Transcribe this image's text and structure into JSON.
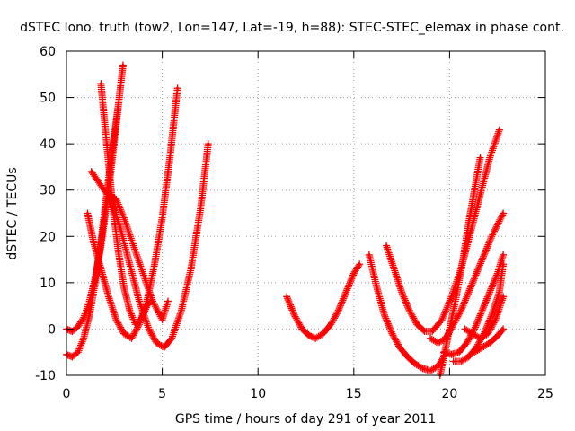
{
  "chart_data": {
    "type": "scatter",
    "title": "dSTEC Iono. truth (tow2, Lon=147, Lat=-19, h=88): STEC-STEC_elemax in phase cont.",
    "xlabel": "GPS time / hours of day 291 of year 2011",
    "ylabel": "dSTEC  / TECUs",
    "xlim": [
      0,
      25
    ],
    "ylim": [
      -10,
      60
    ],
    "xticks": [
      0,
      5,
      10,
      15,
      20,
      25
    ],
    "yticks": [
      -10,
      0,
      10,
      20,
      30,
      40,
      50,
      60
    ],
    "xtick_labels": [
      "0",
      "5",
      "10",
      "15",
      "20",
      "25"
    ],
    "ytick_labels": [
      "-10",
      "0",
      "10",
      "20",
      "30",
      "40",
      "50",
      "60"
    ],
    "grid": true,
    "legend": "none",
    "marker": "plus",
    "color": "#ff0000",
    "series": [
      {
        "x": [
          0.0,
          0.3,
          0.6,
          0.9,
          1.2,
          1.5,
          1.8,
          2.1,
          2.4,
          2.7,
          2.95
        ],
        "y": [
          0,
          -0.5,
          0.5,
          2.5,
          6,
          11,
          18,
          27,
          37,
          48,
          57
        ]
      },
      {
        "x": [
          0.0,
          0.3,
          0.6,
          0.9,
          1.2,
          1.5,
          1.8,
          2.1,
          2.4,
          2.7
        ],
        "y": [
          -5.5,
          -6,
          -5,
          -2,
          3,
          10,
          19,
          29,
          39,
          48
        ]
      },
      {
        "x": [
          1.8,
          2.1,
          2.4,
          2.7,
          3.0,
          3.3,
          3.6,
          3.9,
          4.2,
          4.4
        ],
        "y": [
          53,
          40,
          27,
          17,
          9,
          4,
          1,
          2,
          5,
          6
        ]
      },
      {
        "x": [
          1.1,
          1.4,
          1.8,
          2.2,
          2.6,
          3.0,
          3.4,
          3.8,
          4.2,
          4.6,
          5.0,
          5.4,
          5.8
        ],
        "y": [
          25,
          19,
          13,
          7,
          2,
          -1,
          -2,
          1,
          6,
          14,
          24,
          37,
          52
        ]
      },
      {
        "x": [
          1.3,
          1.8,
          2.3,
          2.8,
          3.3,
          3.8,
          4.3,
          4.7,
          5.1,
          5.5,
          6.0,
          6.5,
          7.0,
          7.4
        ],
        "y": [
          34,
          31,
          28,
          22,
          14,
          6,
          0,
          -3,
          -4,
          -2,
          4,
          13,
          26,
          40
        ]
      },
      {
        "x": [
          2.0,
          2.6,
          3.0,
          3.5,
          4.0,
          4.5,
          5.0,
          5.3
        ],
        "y": [
          30,
          28,
          24,
          18,
          12,
          6,
          2,
          6
        ]
      },
      {
        "x": [
          11.5,
          11.9,
          12.3,
          12.7,
          13.0,
          13.4,
          13.8,
          14.2,
          14.6,
          15.0,
          15.3
        ],
        "y": [
          7,
          3,
          0,
          -1.5,
          -2,
          -1,
          1,
          4,
          8,
          12,
          14
        ]
      },
      {
        "x": [
          15.8,
          16.2,
          16.6,
          17.0,
          17.4,
          17.8,
          18.2,
          18.6,
          19.0,
          19.4,
          19.7
        ],
        "y": [
          16,
          9,
          3,
          -1,
          -4,
          -6,
          -7.5,
          -8.5,
          -9,
          -8,
          -6
        ]
      },
      {
        "x": [
          16.7,
          17.1,
          17.5,
          17.9,
          18.3,
          18.7,
          19.1,
          19.6,
          20.1,
          20.6,
          21.1,
          21.6,
          22.1,
          22.6
        ],
        "y": [
          18,
          13,
          8,
          4,
          1,
          -0.5,
          -0.5,
          2,
          7,
          13,
          21,
          29,
          37,
          43
        ]
      },
      {
        "x": [
          19.5,
          19.9,
          20.3,
          20.7,
          21.0,
          21.3,
          21.6
        ],
        "y": [
          -10,
          -2,
          6,
          15,
          23,
          30,
          37
        ]
      },
      {
        "x": [
          19.0,
          19.4,
          19.8,
          20.2,
          20.6,
          21.0,
          21.4,
          21.8,
          22.2,
          22.8
        ],
        "y": [
          -2,
          -3,
          -2,
          1,
          4,
          8,
          12,
          16,
          20,
          25
        ]
      },
      {
        "x": [
          19.7,
          20.1,
          20.5,
          20.9,
          21.3,
          21.7,
          22.1,
          22.5,
          22.8
        ],
        "y": [
          -5,
          -5.5,
          -5,
          -3,
          0,
          4,
          8,
          12,
          16
        ]
      },
      {
        "x": [
          20.2,
          20.6,
          21.0,
          21.4,
          21.8,
          22.2,
          22.6,
          22.8
        ],
        "y": [
          -7,
          -7,
          -6,
          -4,
          -1,
          3,
          8,
          14
        ]
      },
      {
        "x": [
          20.8,
          21.2,
          21.6,
          22.0,
          22.4,
          22.8
        ],
        "y": [
          0,
          -1,
          -2,
          -1,
          2,
          7
        ]
      },
      {
        "x": [
          21.3,
          21.7,
          22.1,
          22.5,
          22.8
        ],
        "y": [
          -5,
          -4,
          -3,
          -1.5,
          0
        ]
      }
    ]
  }
}
